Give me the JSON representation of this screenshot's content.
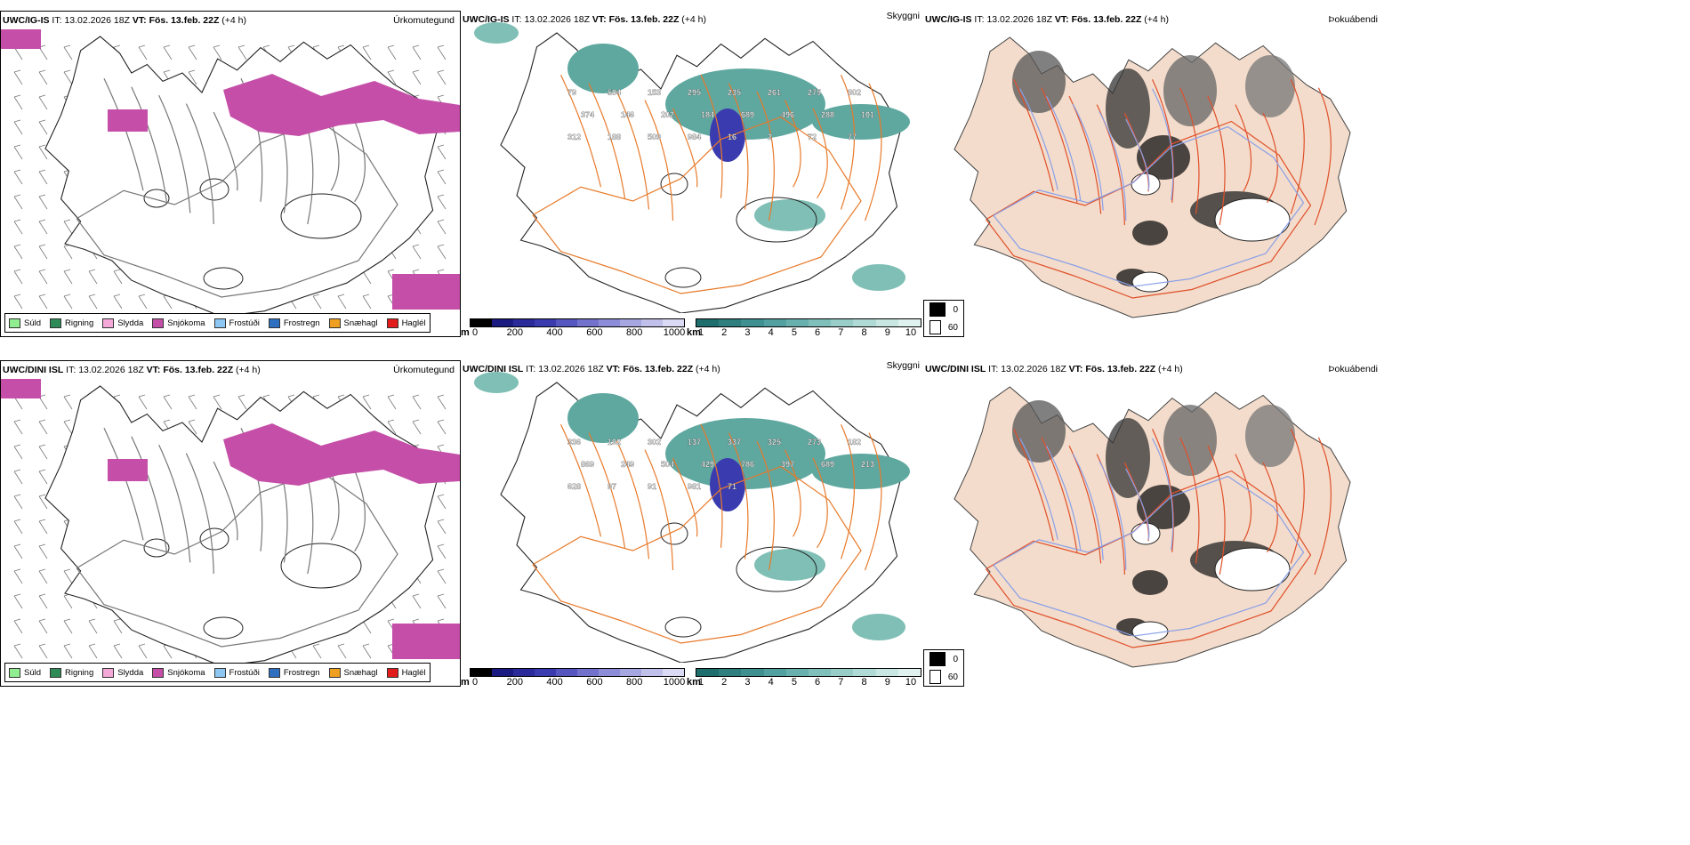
{
  "rows": [
    {
      "model": "UWC/IG-IS",
      "it_label": "IT:",
      "it_value": "13.02.2026 18Z",
      "vt_label": "VT:",
      "vt_value": "Fös. 13.feb. 22Z",
      "lead": "(+4 h)",
      "ceiling_labels": [
        "79",
        "504",
        "153",
        "295",
        "235",
        "261",
        "275",
        "302",
        "374",
        "146",
        "202",
        "184",
        "689",
        "496",
        "288",
        "101",
        "312",
        "188",
        "509",
        "984",
        "16",
        "2",
        "72",
        "77"
      ]
    },
    {
      "model": "UWC/DINI ISL",
      "it_label": "IT:",
      "it_value": "13.02.2026 18Z",
      "vt_label": "VT:",
      "vt_value": "Fös. 13.feb. 22Z",
      "lead": "(+4 h)",
      "ceiling_labels": [
        "336",
        "192",
        "302",
        "137",
        "337",
        "325",
        "273",
        "182",
        "869",
        "249",
        "504",
        "429",
        "786",
        "397",
        "689",
        "213",
        "628",
        "97",
        "91",
        "981",
        "71"
      ]
    }
  ],
  "panel_names": {
    "precip_type": "Úrkomutegund",
    "visibility": "Skyggni",
    "fog": "Þokuábendi"
  },
  "precip_legend": [
    {
      "label": "Súld",
      "color": "#90ee90"
    },
    {
      "label": "Rigning",
      "color": "#2e8b57"
    },
    {
      "label": "Slydda",
      "color": "#f4a9d9"
    },
    {
      "label": "Snjókoma",
      "color": "#c54fa8"
    },
    {
      "label": "Frostúði",
      "color": "#8ec8f2"
    },
    {
      "label": "Frostregn",
      "color": "#2f6fc0"
    },
    {
      "label": "Snæhagl",
      "color": "#f0a020"
    },
    {
      "label": "Haglél",
      "color": "#e21b1b"
    }
  ],
  "ceiling_colorbar": {
    "unit": "m",
    "ticks": [
      "0",
      "200",
      "400",
      "600",
      "800",
      "1000"
    ],
    "colors": [
      "#000000",
      "#1a1a80",
      "#2a2a9a",
      "#3b3bb0",
      "#5656c0",
      "#7272cc",
      "#8c8cd8",
      "#a6a6e0",
      "#c0c0ea",
      "#dadaf4"
    ]
  },
  "visibility_colorbar": {
    "unit": "km",
    "ticks": [
      "1",
      "2",
      "3",
      "4",
      "5",
      "6",
      "7",
      "8",
      "9",
      "10"
    ],
    "colors": [
      "#1e6e6e",
      "#2f7f7f",
      "#3f9090",
      "#52a0a0",
      "#68b0ad",
      "#80c0bb",
      "#98cdc8",
      "#b0dad5",
      "#c8e6e2",
      "#e0f2f0"
    ]
  },
  "fog_legend": [
    {
      "label": "0",
      "color": "#000000"
    },
    {
      "label": "60",
      "color": "#ffffff"
    }
  ],
  "colors": {
    "snow": "#c54fa8",
    "land_fill": "#f3dccb",
    "roads": "#e87a2a",
    "teal": "#5fa8a0",
    "rivers": "#8aa0e8"
  }
}
